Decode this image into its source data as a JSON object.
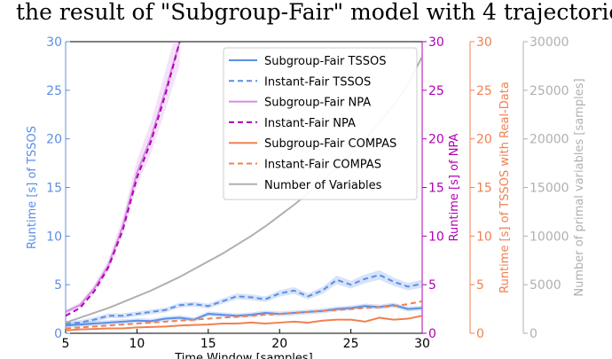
{
  "caption": "the result of \"Subgroup-Fair\" model with 4 trajectories.",
  "chart_data": {
    "type": "line",
    "xlabel": "Time Window [samples]",
    "xlim": [
      5,
      30
    ],
    "x_ticks": [
      5,
      10,
      15,
      20,
      25,
      30
    ],
    "axes": [
      {
        "id": "tssos",
        "label": "Runtime [s] of TSSOS",
        "ylim": [
          0,
          30
        ],
        "ticks": [
          0,
          5,
          10,
          15,
          20,
          25,
          30
        ],
        "color": "#5b8ee6"
      },
      {
        "id": "npa",
        "label": "Runtime [s] of NPA",
        "ylim": [
          0,
          30
        ],
        "ticks": [
          0,
          5,
          10,
          15,
          20,
          25,
          30
        ],
        "color": "#b000b5"
      },
      {
        "id": "compas",
        "label": "Runtime [s] of TSSOS with Real-Data",
        "ylim": [
          0,
          30
        ],
        "ticks": [
          0,
          5,
          10,
          15,
          20,
          25,
          30
        ],
        "color": "#f08050"
      },
      {
        "id": "vars",
        "label": "Number of primal variables [samples]",
        "ylim": [
          0,
          30000
        ],
        "ticks": [
          0,
          5000,
          10000,
          15000,
          20000,
          25000,
          30000
        ],
        "color": "#b0b0b0"
      }
    ],
    "x": [
      5,
      6,
      7,
      8,
      9,
      10,
      11,
      12,
      13,
      14,
      15,
      16,
      17,
      18,
      19,
      20,
      21,
      22,
      23,
      24,
      25,
      26,
      27,
      28,
      29,
      30
    ],
    "series": [
      {
        "name": "Subgroup-Fair TSSOS",
        "axis": "tssos",
        "color": "#5b8ee6",
        "dash": "solid",
        "band": true,
        "values": [
          0.8,
          0.9,
          1.0,
          1.1,
          1.2,
          1.3,
          1.25,
          1.5,
          1.6,
          1.4,
          2.0,
          1.9,
          1.8,
          1.9,
          2.1,
          2.0,
          2.1,
          2.2,
          2.3,
          2.5,
          2.6,
          2.8,
          2.7,
          2.9,
          2.5,
          2.6
        ]
      },
      {
        "name": "Instant-Fair TSSOS",
        "axis": "tssos",
        "color": "#5b8ee6",
        "dash": "dashed",
        "band": true,
        "values": [
          1.0,
          1.1,
          1.4,
          1.8,
          1.8,
          2.0,
          2.2,
          2.4,
          2.9,
          3.0,
          2.8,
          3.3,
          3.8,
          3.7,
          3.5,
          4.1,
          4.4,
          3.8,
          4.4,
          5.5,
          5.0,
          5.6,
          6.0,
          5.3,
          4.8,
          5.1
        ]
      },
      {
        "name": "Subgroup-Fair NPA",
        "axis": "npa",
        "color": "#d98ae6",
        "dash": "solid",
        "band": true,
        "values": [
          2.2,
          2.9,
          4.6,
          7.0,
          11.0,
          16.5,
          20.2,
          25.0,
          30.0,
          null,
          null,
          null,
          null,
          null,
          null,
          null,
          null,
          null,
          null,
          null,
          null,
          null,
          null,
          null,
          null,
          null
        ]
      },
      {
        "name": "Instant-Fair NPA",
        "axis": "npa",
        "color": "#b000b5",
        "dash": "dashed",
        "band": false,
        "values": [
          1.8,
          2.6,
          4.3,
          6.8,
          10.6,
          16.0,
          19.8,
          24.6,
          30.0,
          null,
          null,
          null,
          null,
          null,
          null,
          null,
          null,
          null,
          null,
          null,
          null,
          null,
          null,
          null,
          null,
          null
        ]
      },
      {
        "name": "Subgroup-Fair COMPAS",
        "axis": "compas",
        "color": "#f08050",
        "dash": "solid",
        "band": false,
        "values": [
          0.3,
          0.4,
          0.45,
          0.5,
          0.5,
          0.6,
          0.65,
          0.7,
          0.8,
          0.85,
          0.9,
          1.0,
          1.0,
          1.1,
          1.0,
          1.1,
          1.2,
          1.1,
          1.3,
          1.4,
          1.4,
          1.2,
          1.6,
          1.4,
          1.5,
          1.8
        ]
      },
      {
        "name": "Instant-Fair COMPAS",
        "axis": "compas",
        "color": "#f08050",
        "dash": "dashed",
        "band": false,
        "values": [
          0.5,
          0.6,
          0.7,
          0.8,
          0.9,
          1.0,
          1.1,
          1.2,
          1.3,
          1.4,
          1.5,
          1.6,
          1.7,
          1.8,
          1.9,
          2.0,
          2.1,
          2.2,
          2.3,
          2.4,
          2.5,
          2.6,
          2.7,
          2.8,
          3.0,
          3.3
        ]
      },
      {
        "name": "Number of Variables",
        "axis": "vars",
        "color": "#b0b0b0",
        "dash": "solid",
        "band": false,
        "values": [
          1100,
          1600,
          2100,
          2600,
          3200,
          3800,
          4400,
          5100,
          5800,
          6600,
          7400,
          8200,
          9100,
          10000,
          11000,
          12100,
          13200,
          14400,
          15700,
          17000,
          18500,
          20000,
          21700,
          23500,
          25500,
          28500
        ]
      }
    ],
    "legend": "top-right",
    "grid": false
  }
}
